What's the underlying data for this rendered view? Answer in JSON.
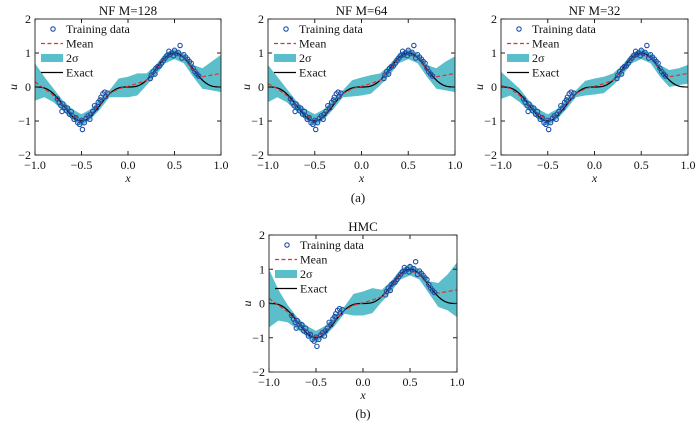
{
  "chart_data": [
    {
      "type": "line",
      "title": "NF M=128",
      "title_prefix": "NF ",
      "title_var": "M",
      "title_suffix": "=128",
      "xlabel": "x",
      "ylabel": "u",
      "xlim": [
        -1,
        1
      ],
      "ylim": [
        -2,
        2
      ],
      "xticks": [
        "−1.0",
        "−0.5",
        "0.0",
        "0.5",
        "1.0"
      ],
      "yticks": [
        "−2",
        "−1",
        "0",
        "1",
        "2"
      ],
      "legend": [
        "Training data",
        "Mean",
        "2σ",
        "Exact"
      ],
      "legend_position": "top-left",
      "grid": false,
      "x": [
        -1,
        -0.9,
        -0.8,
        -0.7,
        -0.6,
        -0.5,
        -0.4,
        -0.3,
        -0.2,
        -0.1,
        0,
        0.1,
        0.2,
        0.3,
        0.4,
        0.5,
        0.6,
        0.7,
        0.8,
        0.9,
        1
      ],
      "mean": [
        0.15,
        -0.05,
        -0.25,
        -0.55,
        -0.8,
        -0.97,
        -0.8,
        -0.5,
        -0.2,
        -0.05,
        0.02,
        0.1,
        0.2,
        0.5,
        0.85,
        0.98,
        0.85,
        0.5,
        0.3,
        0.35,
        0.4
      ],
      "lower": [
        -0.4,
        -0.3,
        -0.45,
        -0.7,
        -0.95,
        -1.15,
        -0.95,
        -0.65,
        -0.3,
        -0.3,
        -0.3,
        -0.25,
        0.05,
        0.35,
        0.7,
        0.82,
        0.7,
        0.3,
        -0.05,
        -0.1,
        -0.15
      ],
      "upper": [
        0.7,
        0.3,
        -0.05,
        -0.4,
        -0.65,
        -0.8,
        -0.65,
        -0.35,
        -0.1,
        0.25,
        0.3,
        0.4,
        0.4,
        0.65,
        1.0,
        1.12,
        1.0,
        0.65,
        0.55,
        0.75,
        0.95
      ]
    },
    {
      "type": "line",
      "title": "NF M=64",
      "title_prefix": "NF ",
      "title_var": "M",
      "title_suffix": "=64",
      "xlabel": "x",
      "ylabel": "u",
      "xlim": [
        -1,
        1
      ],
      "ylim": [
        -2,
        2
      ],
      "xticks": [
        "−1.0",
        "−0.5",
        "0.0",
        "0.5",
        "1.0"
      ],
      "yticks": [
        "−2",
        "−1",
        "0",
        "1",
        "2"
      ],
      "legend": [
        "Training data",
        "Mean",
        "2σ",
        "Exact"
      ],
      "legend_position": "top-left",
      "grid": false,
      "x": [
        -1,
        -0.9,
        -0.8,
        -0.7,
        -0.6,
        -0.5,
        -0.4,
        -0.3,
        -0.2,
        -0.1,
        0,
        0.1,
        0.2,
        0.3,
        0.4,
        0.5,
        0.6,
        0.7,
        0.8,
        0.9,
        1
      ],
      "mean": [
        0.1,
        -0.05,
        -0.25,
        -0.55,
        -0.8,
        -0.97,
        -0.8,
        -0.5,
        -0.2,
        -0.05,
        0.02,
        0.1,
        0.2,
        0.5,
        0.85,
        0.98,
        0.85,
        0.5,
        0.3,
        0.35,
        0.4
      ],
      "lower": [
        -0.45,
        -0.3,
        -0.45,
        -0.7,
        -0.95,
        -1.15,
        -0.95,
        -0.65,
        -0.3,
        -0.28,
        -0.25,
        -0.2,
        0.05,
        0.35,
        0.7,
        0.82,
        0.7,
        0.3,
        -0.05,
        -0.1,
        -0.15
      ],
      "upper": [
        0.65,
        0.3,
        -0.05,
        -0.4,
        -0.65,
        -0.8,
        -0.65,
        -0.35,
        -0.1,
        0.2,
        0.28,
        0.35,
        0.4,
        0.65,
        1.0,
        1.12,
        1.0,
        0.65,
        0.55,
        0.75,
        0.9
      ]
    },
    {
      "type": "line",
      "title": "NF M=32",
      "title_prefix": "NF ",
      "title_var": "M",
      "title_suffix": "=32",
      "xlabel": "x",
      "ylabel": "u",
      "xlim": [
        -1,
        1
      ],
      "ylim": [
        -2,
        2
      ],
      "xticks": [
        "−1.0",
        "−0.5",
        "0.0",
        "0.5",
        "1.0"
      ],
      "yticks": [
        "−2",
        "−1",
        "0",
        "1",
        "2"
      ],
      "legend": [
        "Training data",
        "Mean",
        "2σ",
        "Exact"
      ],
      "legend_position": "top-left",
      "grid": false,
      "x": [
        -1,
        -0.9,
        -0.8,
        -0.7,
        -0.6,
        -0.5,
        -0.4,
        -0.3,
        -0.2,
        -0.1,
        0,
        0.1,
        0.2,
        0.3,
        0.4,
        0.5,
        0.6,
        0.7,
        0.8,
        0.9,
        1
      ],
      "mean": [
        0.05,
        -0.05,
        -0.25,
        -0.55,
        -0.8,
        -0.97,
        -0.8,
        -0.5,
        -0.2,
        -0.05,
        0.02,
        0.1,
        0.2,
        0.5,
        0.85,
        0.98,
        0.85,
        0.5,
        0.3,
        0.35,
        0.4
      ],
      "lower": [
        -0.35,
        -0.25,
        -0.45,
        -0.7,
        -0.95,
        -1.15,
        -0.95,
        -0.65,
        -0.3,
        -0.25,
        -0.22,
        -0.18,
        0.05,
        0.35,
        0.7,
        0.82,
        0.7,
        0.3,
        0.0,
        0.05,
        0.1
      ],
      "upper": [
        0.45,
        0.2,
        -0.05,
        -0.4,
        -0.65,
        -0.8,
        -0.65,
        -0.35,
        -0.1,
        0.18,
        0.25,
        0.3,
        0.4,
        0.65,
        1.0,
        1.12,
        1.0,
        0.65,
        0.5,
        0.55,
        0.65
      ]
    },
    {
      "type": "line",
      "title": "HMC",
      "xlabel": "x",
      "ylabel": "u",
      "xlim": [
        -1,
        1
      ],
      "ylim": [
        -2,
        2
      ],
      "xticks": [
        "−1.0",
        "−0.5",
        "0.0",
        "0.5",
        "1.0"
      ],
      "yticks": [
        "−2",
        "−1",
        "0",
        "1",
        "2"
      ],
      "legend": [
        "Training data",
        "Mean",
        "2σ",
        "Exact"
      ],
      "legend_position": "top-left",
      "grid": false,
      "x": [
        -1,
        -0.9,
        -0.8,
        -0.7,
        -0.6,
        -0.5,
        -0.4,
        -0.3,
        -0.2,
        -0.1,
        0,
        0.1,
        0.2,
        0.3,
        0.4,
        0.5,
        0.6,
        0.7,
        0.8,
        0.9,
        1
      ],
      "mean": [
        0.15,
        -0.05,
        -0.25,
        -0.55,
        -0.8,
        -0.97,
        -0.8,
        -0.5,
        -0.2,
        -0.05,
        0.02,
        0.1,
        0.2,
        0.5,
        0.85,
        0.98,
        0.85,
        0.5,
        0.3,
        0.35,
        0.4
      ],
      "lower": [
        -0.7,
        -0.5,
        -0.55,
        -0.75,
        -0.95,
        -1.15,
        -0.95,
        -0.65,
        -0.3,
        -0.35,
        -0.35,
        -0.28,
        0.05,
        0.35,
        0.7,
        0.82,
        0.7,
        0.3,
        -0.1,
        -0.2,
        -0.4
      ],
      "upper": [
        1.0,
        0.4,
        -0.05,
        -0.4,
        -0.65,
        -0.8,
        -0.65,
        -0.35,
        -0.1,
        0.28,
        0.35,
        0.45,
        0.4,
        0.65,
        1.0,
        1.15,
        1.0,
        0.65,
        0.6,
        0.85,
        1.2
      ]
    }
  ],
  "training_data": {
    "x": [
      -0.76,
      -0.74,
      -0.72,
      -0.71,
      -0.7,
      -0.68,
      -0.66,
      -0.65,
      -0.63,
      -0.61,
      -0.6,
      -0.58,
      -0.56,
      -0.54,
      -0.52,
      -0.5,
      -0.49,
      -0.47,
      -0.45,
      -0.43,
      -0.41,
      -0.4,
      -0.38,
      -0.36,
      -0.34,
      -0.32,
      -0.3,
      -0.29,
      -0.27,
      -0.25,
      -0.24,
      -0.22,
      0.24,
      0.25,
      0.27,
      0.29,
      0.3,
      0.32,
      0.34,
      0.36,
      0.38,
      0.4,
      0.42,
      0.44,
      0.45,
      0.47,
      0.49,
      0.5,
      0.52,
      0.54,
      0.56,
      0.58,
      0.6,
      0.62,
      0.64,
      0.66,
      0.68,
      0.7,
      0.72,
      0.74,
      0.76
    ],
    "y": [
      -0.35,
      -0.45,
      -0.55,
      -0.72,
      -0.5,
      -0.6,
      -0.7,
      -0.62,
      -0.8,
      -0.72,
      -0.85,
      -0.95,
      -0.9,
      -1.05,
      -1.1,
      -0.98,
      -1.25,
      -1.05,
      -0.92,
      -0.85,
      -0.95,
      -0.8,
      -0.72,
      -0.55,
      -0.62,
      -0.45,
      -0.38,
      -0.3,
      -0.2,
      -0.15,
      -0.28,
      -0.18,
      0.25,
      0.35,
      0.45,
      0.38,
      0.55,
      0.6,
      0.62,
      0.7,
      0.78,
      0.85,
      0.92,
      1.05,
      0.95,
      1.0,
      0.92,
      1.08,
      0.98,
      1.02,
      1.22,
      0.85,
      0.95,
      0.88,
      0.82,
      0.75,
      0.7,
      0.55,
      0.45,
      0.38,
      0.32
    ]
  },
  "captions": {
    "a": "(a)",
    "b": "(b)"
  },
  "colors": {
    "points": "#1f4fa8",
    "mean": "#e03030",
    "band": "#5bbfcb",
    "exact": "#000000"
  }
}
